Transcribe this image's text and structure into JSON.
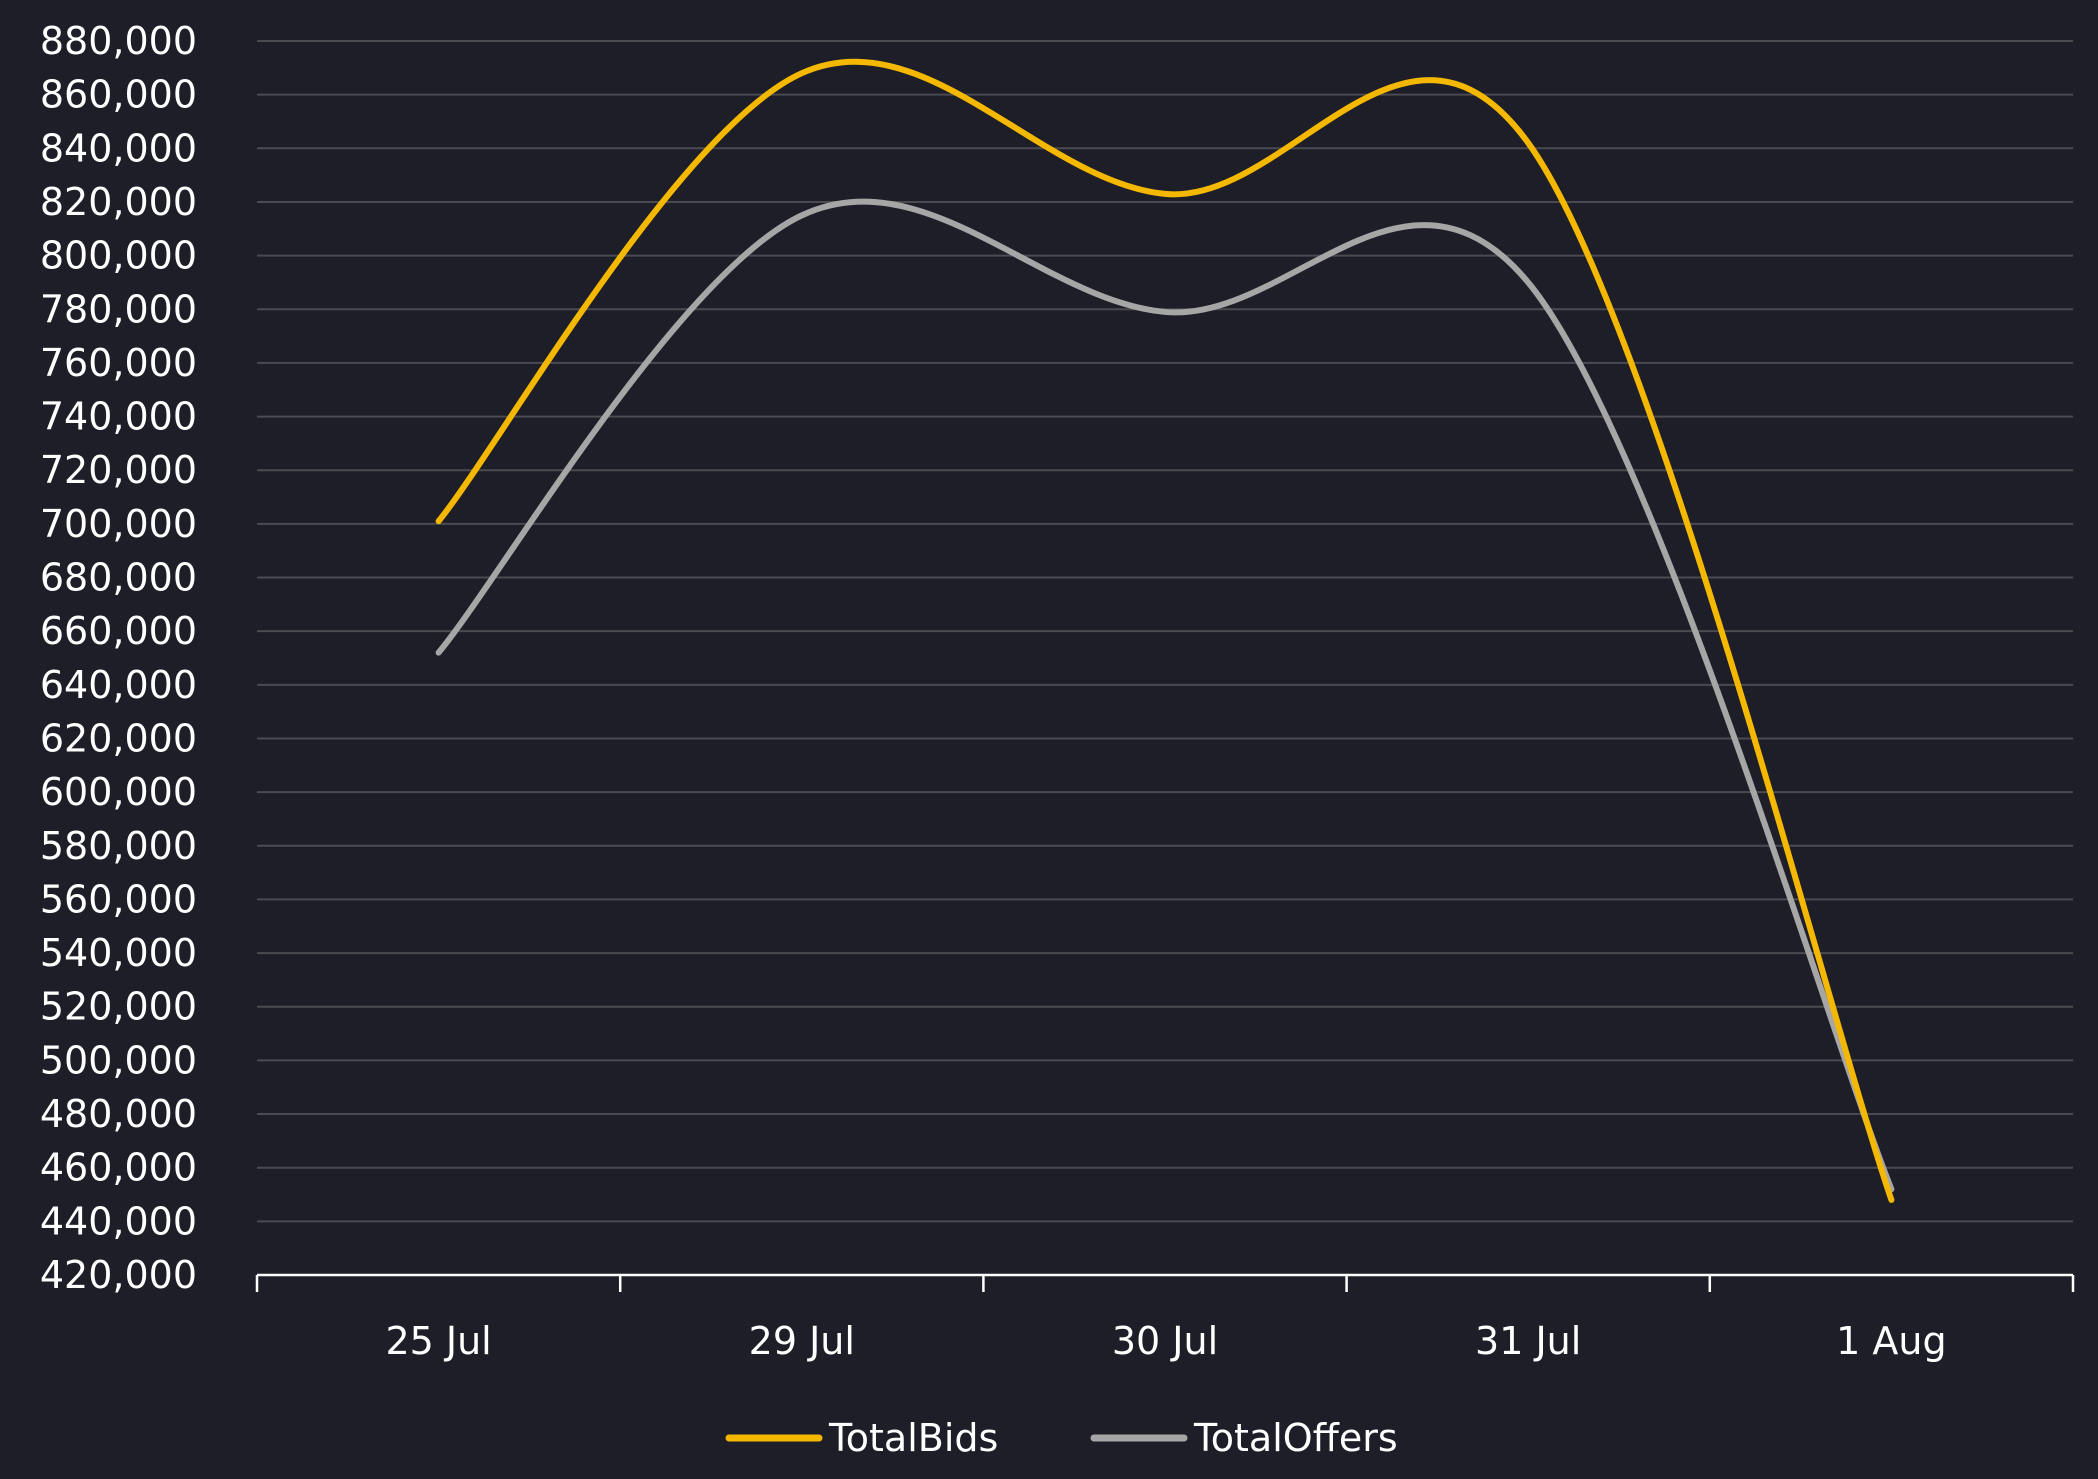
{
  "chart_data": {
    "type": "line",
    "title": "",
    "xlabel": "",
    "ylabel": "",
    "categories": [
      "25 Jul",
      "29 Jul",
      "30 Jul",
      "31 Jul",
      "1 Aug"
    ],
    "ylim": [
      420000,
      880000
    ],
    "ytick_step": 20000,
    "yticks": [
      "420,000",
      "440,000",
      "460,000",
      "480,000",
      "500,000",
      "520,000",
      "540,000",
      "560,000",
      "580,000",
      "600,000",
      "620,000",
      "640,000",
      "660,000",
      "680,000",
      "700,000",
      "720,000",
      "740,000",
      "760,000",
      "780,000",
      "800,000",
      "820,000",
      "840,000",
      "860,000",
      "880,000"
    ],
    "grid": true,
    "smooth": true,
    "legend_position": "bottom",
    "series": [
      {
        "name": "TotalBids",
        "color": "#f5b800",
        "values": [
          701000,
          868000,
          823000,
          842000,
          448000
        ]
      },
      {
        "name": "TotalOffers",
        "color": "#a6a6a6",
        "values": [
          652000,
          815000,
          779000,
          790000,
          452000
        ]
      }
    ]
  }
}
